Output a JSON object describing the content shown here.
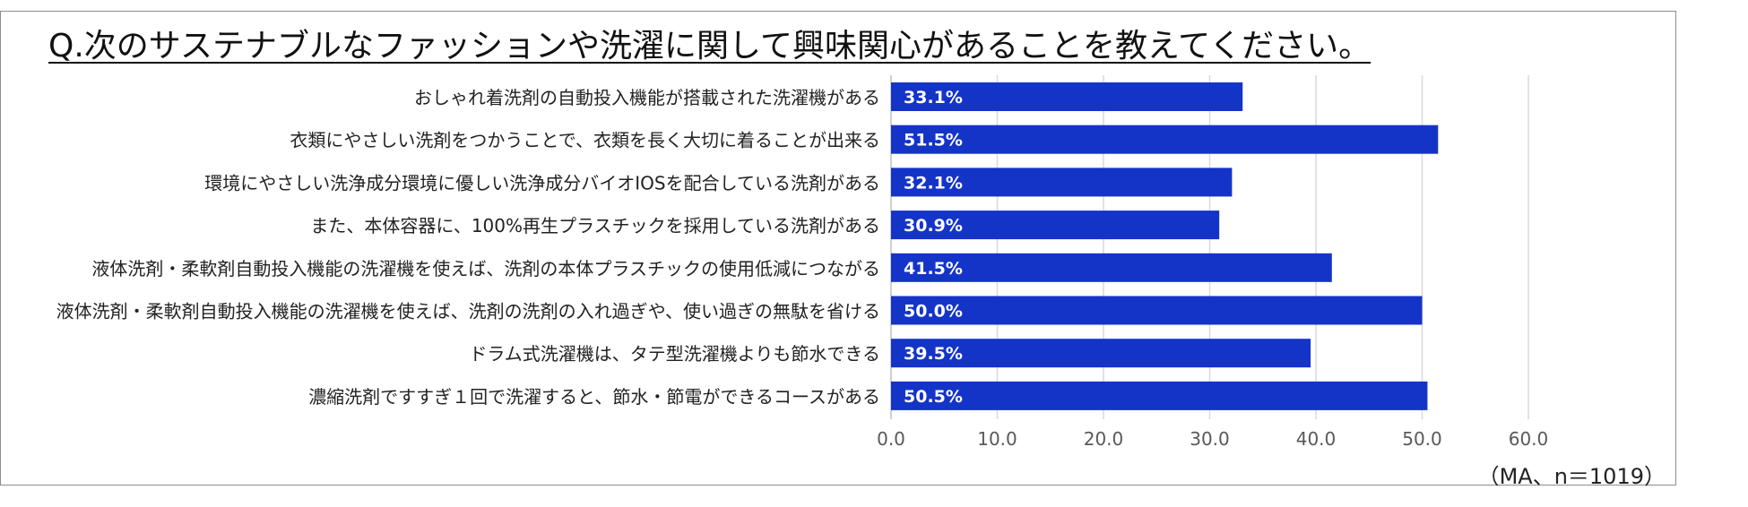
{
  "title": "Q.次のサステナブルなファッションや洗濯に関して興味関心があることを教えてください。",
  "note": "（MA、n＝1019）",
  "colors": {
    "bar": "#1434c8",
    "grid": "#d9d9d9",
    "axis": "#bfbfbf",
    "label": "#222222",
    "tick": "#595959"
  },
  "chart_data": {
    "type": "bar",
    "orientation": "horizontal",
    "categories": [
      "おしゃれ着洗剤の自動投入機能が搭載された洗濯機がある",
      "衣類にやさしい洗剤をつかうことで、衣類を長く大切に着ることが出来る",
      "環境にやさしい洗浄成分環境に優しい洗浄成分バイオIOSを配合している洗剤がある",
      "また、本体容器に、100%再生プラスチックを採用している洗剤がある",
      "液体洗剤・柔軟剤自動投入機能の洗濯機を使えば、洗剤の本体プラスチックの使用低減につながる",
      "液体洗剤・柔軟剤自動投入機能の洗濯機を使えば、洗剤の洗剤の入れ過ぎや、使い過ぎの無駄を省ける",
      "ドラム式洗濯機は、タテ型洗濯機よりも節水できる",
      "濃縮洗剤ですすぎ１回で洗濯すると、節水・節電ができるコースがある"
    ],
    "values": [
      33.1,
      51.5,
      32.1,
      30.9,
      41.5,
      50.0,
      39.5,
      50.5
    ],
    "data_labels": [
      "33.1%",
      "51.5%",
      "32.1%",
      "30.9%",
      "41.5%",
      "50.0%",
      "39.5%",
      "50.5%"
    ],
    "xlim": [
      0,
      60
    ],
    "ticks": [
      0,
      10,
      20,
      30,
      40,
      50,
      60
    ],
    "tick_labels": [
      "0.0",
      "10.0",
      "20.0",
      "30.0",
      "40.0",
      "50.0",
      "60.0"
    ],
    "grid": true,
    "legend": "none"
  }
}
